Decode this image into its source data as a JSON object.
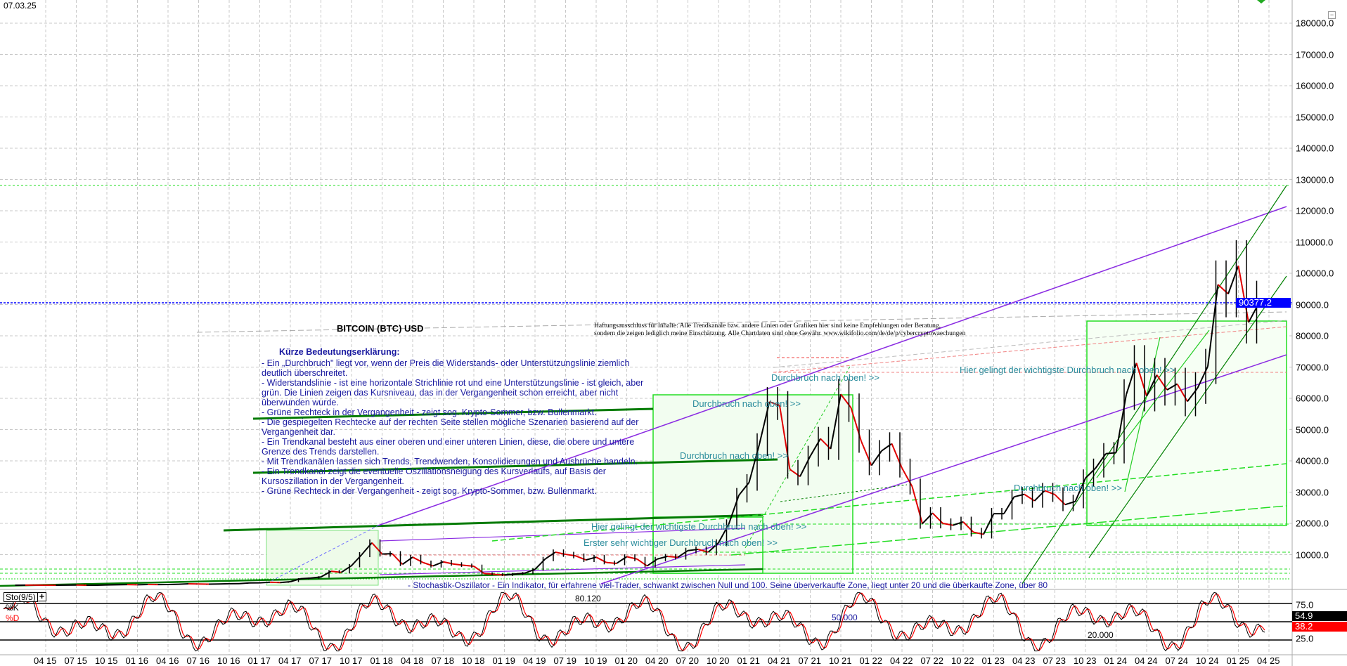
{
  "header": {
    "date": "07.03.25"
  },
  "title": "BITCOIN (BTC) USD",
  "disclaimer": [
    "Haftungsausschluss für Inhalte: Alle Trendkanäle bzw. andere Linien oder Grafiken hier sind keine Empfehlungen oder Beratung,",
    "sondern die zeigen lediglich meine Einschätzung. Alle Chartdaten sind ohne Gewähr. www.wikifolio.com/de/de/p/cybercryptowaechungen"
  ],
  "legend": {
    "heading": "Kürze Bedeutungserklärung:",
    "lines": [
      "- Ein „Durchbruch\" liegt vor, wenn der Preis die Widerstands- oder Unterstützungslinie ziemlich deutlich überschreitet.",
      "- Widerstandslinie - ist eine horizontale Strichlinie rot und eine Unterstützungslinie - ist gleich, aber grün. Die Linien zeigen das Kursniveau, das in der Vergangenheit schon erreicht, aber nicht überwunden wurde.",
      "- Grüne Rechteck in der Vergangenheit - zeigt sog. Krypto-Sommer, bzw. Bullenmarkt.",
      "- Die gespiegelten Rechtecke auf der rechten Seite stellen mögliche Szenarien basierend auf der Vergangenheit dar.",
      "- Ein Trendkanal besteht aus einer oberen und einer unteren Linien, diese, die obere und untere Grenze des Trends darstellen.",
      "- Mit Trendkanälen lassen sich Trends, Trendwenden, Konsolidierungen und Ausbrüche handeln.",
      "- Ein Trendkanal zeigt die eventuelle Oszillationsneigung des Kursverlaufs, auf Basis der Kursoszillation in der Vergangenheit.",
      "- Grüne Rechteck in der Vergangenheit - zeigt sog. Krypto-Sommer, bzw. Bullenmarkt."
    ]
  },
  "annotations": {
    "breakout_1": "Durchbruch nach oben! >>",
    "breakout_2": "Durchbruch nach oben! >>",
    "breakout_3": "Durchbruch nach oben! >>",
    "breakout_4": "Durchbruch nach oben! >>",
    "key_breakout_1": "Hier gelingt der wichtigste Durchbruch nach oben! >>",
    "key_breakout_2": "Hier gelingt der wichtigste Durchbruch nach oben! >>",
    "first_breakout": "Erster sehr wichtiger Durchbruch nach oben! >>",
    "stochastic_note": "- Stochastik-Oszillator - Ein Indikator, für erfahrene viel-Trader, schwankt zwischen Null und 100. Seine überverkaufte Zone, liegt unter 20 und die überkaufte Zone, über 80",
    "stoch_80": "80.120",
    "stoch_50": "50.000",
    "stoch_20": "20.000"
  },
  "indicator": {
    "name": "Sto(9/5)",
    "add_label": "+",
    "k_label": "%K",
    "d_label": "%D",
    "k_value": "54.9",
    "d_value": "38.2",
    "axis": [
      "75.0",
      "25.0"
    ]
  },
  "current_price": "90377.2",
  "colors": {
    "k": "#000000",
    "d": "#ff0000",
    "price_tag": "#0000ff",
    "trend": "#8a2be2",
    "channel": "#008000"
  },
  "chart_data": {
    "type": "line",
    "title": "BITCOIN (BTC) USD",
    "ylabel": "USD",
    "ylim": [
      0,
      185000
    ],
    "y_ticks": [
      "10000.0",
      "20000.0",
      "30000.0",
      "40000.0",
      "50000.0",
      "60000.0",
      "70000.0",
      "80000.0",
      "90000.0",
      "100000.0",
      "110000.0",
      "120000.0",
      "130000.0",
      "140000.0",
      "150000.0",
      "160000.0",
      "170000.0",
      "180000.0"
    ],
    "x_ticks": [
      "04",
      "15",
      "07",
      "15",
      "10",
      "15",
      "01",
      "16",
      "04",
      "16",
      "07",
      "16",
      "10",
      "16",
      "01",
      "17",
      "04",
      "17",
      "07",
      "17",
      "10",
      "17",
      "01",
      "18",
      "04",
      "18",
      "07",
      "18",
      "10",
      "18",
      "01",
      "19",
      "04",
      "19",
      "07",
      "19",
      "10",
      "19",
      "01",
      "20",
      "04",
      "20",
      "07",
      "20",
      "10",
      "20",
      "01",
      "21",
      "04",
      "21",
      "07",
      "21",
      "10",
      "21",
      "01",
      "22",
      "04",
      "22",
      "07",
      "22",
      "10",
      "22",
      "01",
      "23",
      "04",
      "23",
      "07",
      "23",
      "10",
      "23",
      "01",
      "24",
      "04",
      "24",
      "07",
      "24",
      "10",
      "24",
      "01",
      "25",
      "04",
      "25"
    ],
    "start_month": "2015-01",
    "monthly_close": [
      218,
      254,
      244,
      236,
      230,
      263,
      284,
      230,
      236,
      314,
      377,
      430,
      368,
      437,
      416,
      448,
      531,
      673,
      624,
      575,
      609,
      700,
      742,
      963,
      970,
      1190,
      1080,
      1350,
      2300,
      2500,
      2870,
      4700,
      4340,
      6470,
      10000,
      13800,
      10200,
      10300,
      6900,
      9200,
      7500,
      6400,
      7700,
      7000,
      6600,
      6300,
      4000,
      3700,
      3450,
      3800,
      4100,
      5300,
      8600,
      10800,
      10100,
      9600,
      8300,
      9200,
      7500,
      7200,
      9350,
      8600,
      6400,
      8600,
      9450,
      9150,
      11300,
      11700,
      10800,
      13800,
      19700,
      29000,
      33100,
      45200,
      58900,
      57700,
      37300,
      35000,
      41500,
      47100,
      43800,
      61300,
      57000,
      46300,
      38500,
      43200,
      45500,
      37700,
      31800,
      19900,
      23300,
      20000,
      19400,
      20500,
      17200,
      16500,
      23100,
      23100,
      28500,
      29300,
      27200,
      30500,
      29200,
      26000,
      27000,
      34500,
      37700,
      42300,
      42600,
      61200,
      71300,
      60700,
      67500,
      62700,
      64600,
      59000,
      63300,
      70200,
      96400,
      93400,
      102400,
      84300,
      90377
    ],
    "last_price": 90377.2,
    "stochastic": {
      "period": "9/5",
      "k_last": 54.9,
      "d_last": 38.2,
      "levels": [
        20,
        50,
        80
      ]
    }
  }
}
